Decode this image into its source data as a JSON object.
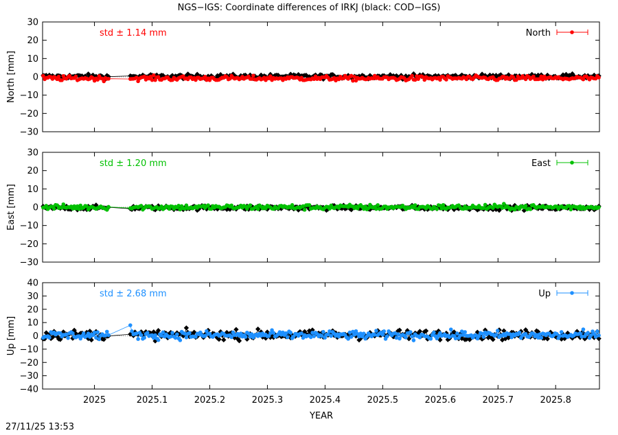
{
  "title": "NGS−IGS: Coordinate differences of IRKJ (black: COD−IGS)",
  "timestamp": "27/11/25 13:53",
  "chart_data": {
    "type": "scatter",
    "xlabel": "YEAR",
    "xlim": [
      2024.91,
      2025.876
    ],
    "x_ticks": [
      2025.0,
      2025.1,
      2025.2,
      2025.3,
      2025.4,
      2025.5,
      2025.6,
      2025.7,
      2025.8
    ],
    "x_tick_labels": [
      "2025",
      "2025.1",
      "2025.2",
      "2025.3",
      "2025.4",
      "2025.5",
      "2025.6",
      "2025.7",
      "2025.8"
    ],
    "panels": [
      {
        "id": "north",
        "ylabel": "North [mm]",
        "ylim": [
          -30,
          30
        ],
        "y_ticks": [
          -30,
          -20,
          -10,
          0,
          10,
          20,
          30
        ],
        "y_tick_labels": [
          "−30",
          "−20",
          "−10",
          "0",
          "10",
          "20",
          "30"
        ],
        "std_label": "std ± 1.14 mm",
        "legend_label": "North",
        "legend_position": "top-right",
        "color": "#ff0000",
        "ref_color": "#000000",
        "noise_main": 1.1,
        "noise_ref": 1.0,
        "offset_main": -0.8,
        "offset_ref": 0.2
      },
      {
        "id": "east",
        "ylabel": "East [mm]",
        "ylim": [
          -30,
          30
        ],
        "y_ticks": [
          -30,
          -20,
          -10,
          0,
          10,
          20,
          30
        ],
        "y_tick_labels": [
          "−30",
          "−20",
          "−10",
          "0",
          "10",
          "20",
          "30"
        ],
        "std_label": "std ± 1.20 mm",
        "legend_label": "East",
        "legend_position": "top-right",
        "color": "#00c000",
        "ref_color": "#000000",
        "noise_main": 1.2,
        "noise_ref": 1.0,
        "offset_main": 0.0,
        "offset_ref": -0.3
      },
      {
        "id": "up",
        "ylabel": "Up [mm]",
        "ylim": [
          -40,
          40
        ],
        "y_ticks": [
          -40,
          -30,
          -20,
          -10,
          0,
          10,
          20,
          30,
          40
        ],
        "y_tick_labels": [
          "−40",
          "−30",
          "−20",
          "−10",
          "0",
          "10",
          "20",
          "30",
          "40"
        ],
        "std_label": "std ± 2.68 mm",
        "legend_label": "Up",
        "legend_position": "top-right",
        "color": "#1e90ff",
        "ref_color": "#000000",
        "noise_main": 2.6,
        "noise_ref": 3.0,
        "offset_main": 0.5,
        "offset_ref": 0.8
      }
    ],
    "data_gap": [
      2025.025,
      2025.06
    ],
    "sample_step_years": 0.0027,
    "grid": false
  }
}
